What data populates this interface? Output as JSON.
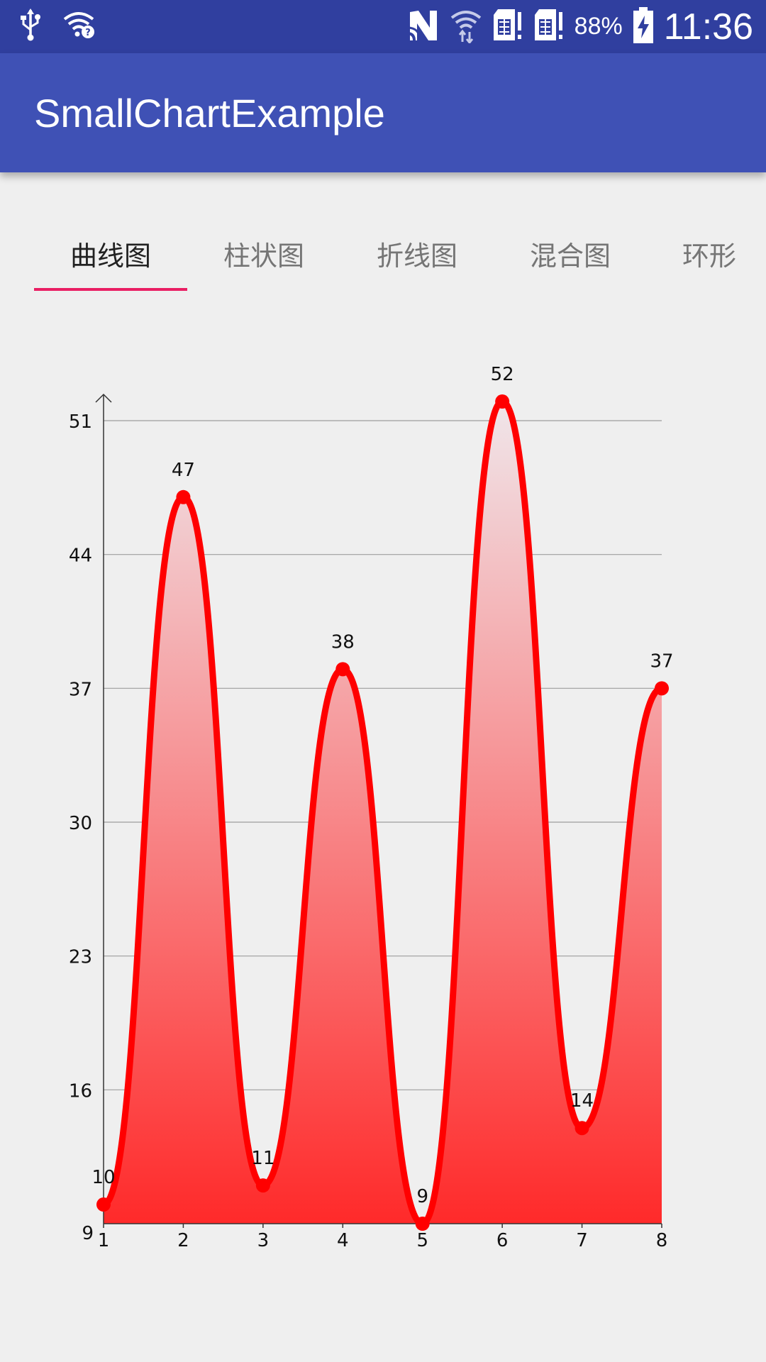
{
  "status_bar": {
    "battery_percent": "88%",
    "time": "11:36",
    "icons": [
      "usb-icon",
      "wifi-question-icon",
      "nfc-icon",
      "wifi-data-icon",
      "sim1-icon",
      "sim2-icon",
      "battery-charging-icon"
    ]
  },
  "app_bar": {
    "title": "SmallChartExample"
  },
  "tabs": [
    {
      "label": "曲线图"
    },
    {
      "label": "柱状图"
    },
    {
      "label": "折线图"
    },
    {
      "label": "混合图"
    },
    {
      "label": "环形"
    }
  ],
  "colors": {
    "status_bar": "#303f9f",
    "app_bar": "#3f51b5",
    "tab_indicator": "#e91e63",
    "curve": "#ff0000",
    "area_top": "#f0e6ea",
    "area_bottom": "#ff2a2a"
  },
  "chart_data": {
    "type": "area",
    "title": "",
    "xlabel": "",
    "ylabel": "",
    "x": [
      1,
      2,
      3,
      4,
      5,
      6,
      7,
      8
    ],
    "values": [
      10,
      47,
      11,
      38,
      9,
      52,
      14,
      37
    ],
    "x_ticks": [
      "1",
      "2",
      "3",
      "4",
      "5",
      "6",
      "7",
      "8"
    ],
    "y_ticks": [
      "9",
      "16",
      "23",
      "30",
      "37",
      "44",
      "51"
    ],
    "ylim": [
      9,
      51
    ],
    "smooth": true,
    "grid": true
  }
}
